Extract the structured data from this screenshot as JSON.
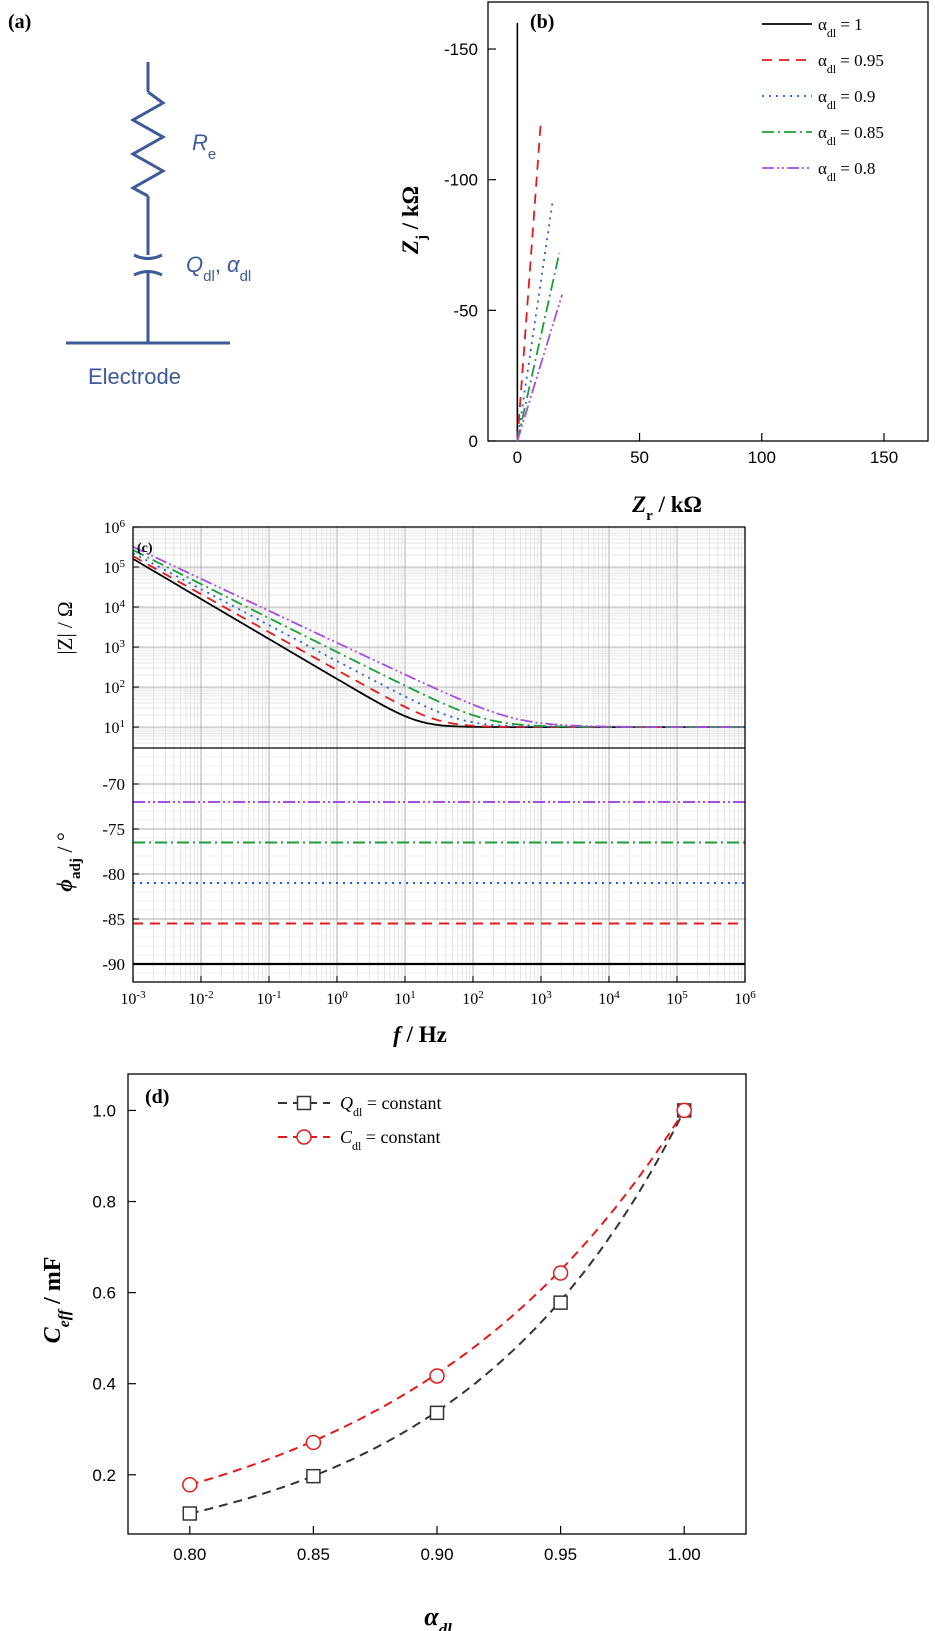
{
  "colors": {
    "series_alpha_1": "#000000",
    "series_alpha_095": "#e41a1c",
    "series_alpha_09": "#1f5fd6",
    "series_alpha_085": "#1b9e3a",
    "series_alpha_08": "#a64ee0",
    "circuit": "#3d5a99",
    "d_square": "#333333",
    "d_circle": "#e41a1c"
  },
  "panel_a": {
    "label": "(a)",
    "re_symbol": "R",
    "re_sub": "e",
    "q_symbol": "Q",
    "q_sub": "dl",
    "alpha_symbol": "α",
    "alpha_sub": "dl",
    "electrode_label": "Electrode"
  },
  "legend_b": {
    "symbol": "α",
    "sub": "dl",
    "entries": [
      "= 1",
      "= 0.95",
      "= 0.9",
      "= 0.85",
      "= 0.8"
    ]
  },
  "panel_c": {
    "label": "(c)",
    "mag_ylabel": "|Z| / Ω",
    "phase_ylabel_symbol": "ϕ",
    "phase_ylabel_sub": "adj",
    "phase_ylabel_unit": " / °",
    "xlabel_symbol": "f",
    "xlabel_unit": " / Hz"
  },
  "chart_data": [
    {
      "id": "b",
      "type": "line",
      "title": "(b)",
      "xlabel_symbol": "Z",
      "xlabel_sub": "r",
      "xlabel_unit": " / kΩ",
      "ylabel_symbol": "Z",
      "ylabel_sub": "j",
      "ylabel_unit": " / kΩ",
      "xlim": [
        -12,
        168
      ],
      "ylim": [
        0,
        -168
      ],
      "xticks": [
        0,
        50,
        100,
        150
      ],
      "yticks": [
        0,
        -50,
        -100,
        -150
      ],
      "series": [
        {
          "alpha": 1.0,
          "x": [
            0.01,
            0.01
          ],
          "y": [
            0,
            -160
          ]
        },
        {
          "alpha": 0.95,
          "x": [
            0.01,
            9.6
          ],
          "y": [
            0,
            -122
          ]
        },
        {
          "alpha": 0.9,
          "x": [
            0.01,
            14.5
          ],
          "y": [
            0,
            -92
          ]
        },
        {
          "alpha": 0.85,
          "x": [
            0.01,
            17.2
          ],
          "y": [
            0,
            -72
          ]
        },
        {
          "alpha": 0.8,
          "x": [
            0.01,
            18.3
          ],
          "y": [
            0,
            -56
          ]
        }
      ]
    },
    {
      "id": "c-magnitude",
      "type": "line",
      "xscale": "log",
      "yscale": "log",
      "xlim": [
        0.001,
        1000000
      ],
      "ylim": [
        3,
        1000000
      ],
      "xticks": [
        "10^-3",
        "10^-2",
        "10^-1",
        "10^0",
        "10^1",
        "10^2",
        "10^3",
        "10^4",
        "10^5",
        "10^6"
      ],
      "yticks": [
        "10^1",
        "10^2",
        "10^3",
        "10^4",
        "10^5",
        "10^6"
      ],
      "grid": true,
      "re_ohm": 10,
      "series": [
        {
          "alpha": 1.0,
          "Q_model": 0.001
        },
        {
          "alpha": 0.95,
          "Q_model": 0.00066
        },
        {
          "alpha": 0.9,
          "Q_model": 0.00043
        },
        {
          "alpha": 0.85,
          "Q_model": 0.00028
        },
        {
          "alpha": 0.8,
          "Q_model": 0.00018
        }
      ]
    },
    {
      "id": "c-phase",
      "type": "line",
      "xscale": "log",
      "xlim": [
        0.001,
        1000000
      ],
      "ylim": [
        -92,
        -66
      ],
      "yticks": [
        -90,
        -85,
        -80,
        -75,
        -70
      ],
      "grid": true,
      "series": [
        {
          "alpha": 1.0,
          "phase": -90
        },
        {
          "alpha": 0.95,
          "phase": -85.5
        },
        {
          "alpha": 0.9,
          "phase": -81
        },
        {
          "alpha": 0.85,
          "phase": -76.5
        },
        {
          "alpha": 0.8,
          "phase": -72
        }
      ]
    },
    {
      "id": "d",
      "type": "scatter",
      "title": "(d)",
      "xlabel_symbol": "α",
      "xlabel_sub": "dl",
      "ylabel_symbol": "C",
      "ylabel_sub": "eff",
      "ylabel_unit": " / mF",
      "xlim": [
        0.775,
        1.025
      ],
      "ylim": [
        0.07,
        1.08
      ],
      "xticks": [
        "0.80",
        "0.85",
        "0.90",
        "0.95",
        "1.00"
      ],
      "yticks": [
        "0.2",
        "0.4",
        "0.6",
        "0.8",
        "1.0"
      ],
      "legend_position": "top-left",
      "x": [
        0.8,
        0.85,
        0.9,
        0.95,
        1.0
      ],
      "series": [
        {
          "name_symbol": "Q",
          "name_sub": "dl",
          "name_rest": " = constant",
          "marker": "square",
          "values": [
            0.115,
            0.197,
            0.336,
            0.578,
            1.0
          ]
        },
        {
          "name_symbol": "C",
          "name_sub": "dl",
          "name_rest": " = constant",
          "marker": "circle",
          "values": [
            0.178,
            0.271,
            0.417,
            0.643,
            1.0
          ]
        }
      ]
    }
  ]
}
